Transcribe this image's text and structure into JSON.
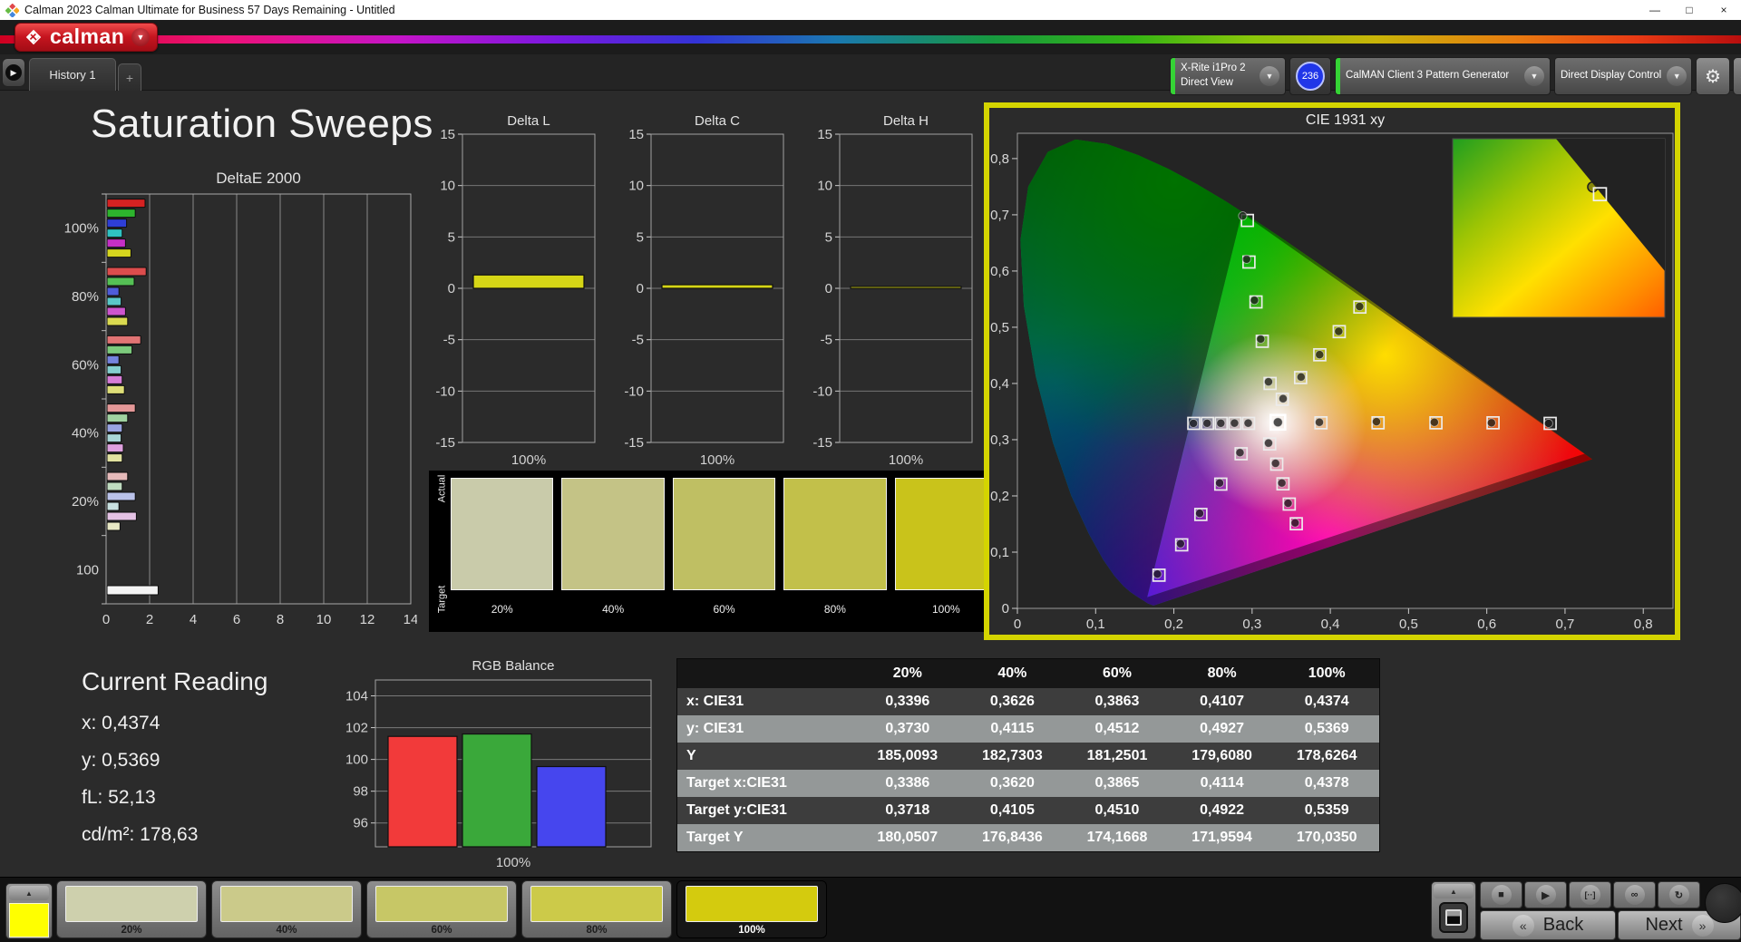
{
  "window": {
    "title": "Calman 2023 Calman Ultimate for Business 57 Days Remaining  - Untitled",
    "minimize": "—",
    "maximize": "□",
    "close": "×"
  },
  "brand": {
    "logo_text": "calman",
    "caret": "▼"
  },
  "tabs": {
    "history": "History 1",
    "add": "+",
    "scroll_arrow": "▶"
  },
  "toolbar": {
    "meter_line1": "X-Rite i1Pro 2",
    "meter_line2": "Direct View",
    "badge": "236",
    "pattern_generator": "CalMAN Client 3 Pattern Generator",
    "display_control": "Direct Display Control",
    "caret": "▼",
    "gear_icon": "⚙",
    "collapse_icon": "◀",
    "meter_status_color": "#35d435",
    "patgen_status_color": "#35d435",
    "dispctl_status_color": "#e3e300"
  },
  "page_title": "Saturation Sweeps",
  "current_reading": {
    "heading": "Current Reading",
    "x_line": "x: 0,4374",
    "y_line": "y: 0,5369",
    "fl_line": "fL: 52,13",
    "cdm2_line": "cd/m²: 178,63"
  },
  "swatch_strip": {
    "actual_label": "Actual",
    "target_label": "Target",
    "items": [
      {
        "label": "20%",
        "color": "#c9cbaa"
      },
      {
        "label": "40%",
        "color": "#c4c386"
      },
      {
        "label": "60%",
        "color": "#bfbf63"
      },
      {
        "label": "80%",
        "color": "#c2c04a"
      },
      {
        "label": "100%",
        "color": "#c9c31b"
      }
    ]
  },
  "table": {
    "columns": [
      "",
      "20%",
      "40%",
      "60%",
      "80%",
      "100%"
    ],
    "rows": [
      {
        "label": "x: CIE31",
        "values": [
          "0,3396",
          "0,3626",
          "0,3863",
          "0,4107",
          "0,4374"
        ]
      },
      {
        "label": "y: CIE31",
        "values": [
          "0,3730",
          "0,4115",
          "0,4512",
          "0,4927",
          "0,5369"
        ]
      },
      {
        "label": "Y",
        "values": [
          "185,0093",
          "182,7303",
          "181,2501",
          "179,6080",
          "178,6264"
        ]
      },
      {
        "label": "Target x:CIE31",
        "values": [
          "0,3386",
          "0,3620",
          "0,3865",
          "0,4114",
          "0,4378"
        ]
      },
      {
        "label": "Target y:CIE31",
        "values": [
          "0,3718",
          "0,4105",
          "0,4510",
          "0,4922",
          "0,5359"
        ]
      },
      {
        "label": "Target Y",
        "values": [
          "180,0507",
          "176,8436",
          "174,1668",
          "171,9594",
          "170,0350"
        ]
      }
    ]
  },
  "footer": {
    "pattern_color": "#ffff00",
    "levels": [
      {
        "label": "20%",
        "color": "#ced0ad",
        "selected": false
      },
      {
        "label": "40%",
        "color": "#cbca8a",
        "selected": false
      },
      {
        "label": "60%",
        "color": "#c7c766",
        "selected": false
      },
      {
        "label": "80%",
        "color": "#ccca49",
        "selected": false
      },
      {
        "label": "100%",
        "color": "#d4cb0e",
        "selected": true
      }
    ],
    "icons": {
      "up_chevron": "▲",
      "stop": "■",
      "play": "▶",
      "series": "[··]",
      "continuous": "∞",
      "refresh": "↻"
    },
    "back_label": "Back",
    "next_label": "Next",
    "back_chevron": "«",
    "next_chevron": "»"
  },
  "chart_data": [
    {
      "id": "deltae2000",
      "type": "bar",
      "orientation": "horizontal",
      "title": "DeltaE 2000",
      "xlim": [
        0,
        14
      ],
      "xticks": [
        0,
        2,
        4,
        6,
        8,
        10,
        12,
        14
      ],
      "groups": [
        {
          "label": "100%",
          "bars": [
            {
              "color": "#d52222",
              "value": 1.75
            },
            {
              "color": "#2db42d",
              "value": 1.3
            },
            {
              "color": "#2e3ed6",
              "value": 0.9
            },
            {
              "color": "#2fc2c2",
              "value": 0.7
            },
            {
              "color": "#c52fc5",
              "value": 0.85
            },
            {
              "color": "#d6d61e",
              "value": 1.1
            }
          ]
        },
        {
          "label": "80%",
          "bars": [
            {
              "color": "#dc4d4d",
              "value": 1.8
            },
            {
              "color": "#55c055",
              "value": 1.25
            },
            {
              "color": "#4f5cda",
              "value": 0.55
            },
            {
              "color": "#5ac8c8",
              "value": 0.65
            },
            {
              "color": "#cd55cd",
              "value": 0.85
            },
            {
              "color": "#dada50",
              "value": 0.95
            }
          ]
        },
        {
          "label": "60%",
          "bars": [
            {
              "color": "#e17474",
              "value": 1.55
            },
            {
              "color": "#7cca7c",
              "value": 1.15
            },
            {
              "color": "#7583de",
              "value": 0.55
            },
            {
              "color": "#84cfcf",
              "value": 0.65
            },
            {
              "color": "#d67cd6",
              "value": 0.7
            },
            {
              "color": "#dede78",
              "value": 0.8
            }
          ]
        },
        {
          "label": "40%",
          "bars": [
            {
              "color": "#e49898",
              "value": 1.3
            },
            {
              "color": "#a0d2a0",
              "value": 0.95
            },
            {
              "color": "#99a4e2",
              "value": 0.7
            },
            {
              "color": "#a8d6d6",
              "value": 0.65
            },
            {
              "color": "#dea0de",
              "value": 0.75
            },
            {
              "color": "#e2e2a0",
              "value": 0.7
            }
          ]
        },
        {
          "label": "20%",
          "bars": [
            {
              "color": "#e6baba",
              "value": 0.95
            },
            {
              "color": "#c0dcc0",
              "value": 0.7
            },
            {
              "color": "#bac2ea",
              "value": 1.3
            },
            {
              "color": "#c8e0e0",
              "value": 0.55
            },
            {
              "color": "#e4c2e4",
              "value": 1.35
            },
            {
              "color": "#e8e8c4",
              "value": 0.6
            }
          ]
        },
        {
          "label": "100",
          "bars": [
            {
              "color": "#f4f4f4",
              "value": 2.35
            }
          ]
        }
      ]
    },
    {
      "id": "delta_l",
      "type": "bar",
      "title": "Delta L",
      "ylim": [
        -15,
        15
      ],
      "yticks": [
        15,
        10,
        5,
        0,
        -5,
        -10,
        -15
      ],
      "categories": [
        "100%"
      ],
      "values": [
        1.3
      ],
      "bar_color": "#d6d616"
    },
    {
      "id": "delta_c",
      "type": "bar",
      "title": "Delta C",
      "ylim": [
        -15,
        15
      ],
      "yticks": [
        15,
        10,
        5,
        0,
        -5,
        -10,
        -15
      ],
      "categories": [
        "100%"
      ],
      "values": [
        0.35
      ],
      "bar_color": "#d6d616"
    },
    {
      "id": "delta_h",
      "type": "bar",
      "title": "Delta H",
      "ylim": [
        -15,
        15
      ],
      "yticks": [
        15,
        10,
        5,
        0,
        -5,
        -10,
        -15
      ],
      "categories": [
        "100%"
      ],
      "values": [
        0.08
      ],
      "bar_color": "#d6d616"
    },
    {
      "id": "rgb_balance",
      "type": "bar",
      "title": "RGB Balance",
      "ylim": [
        94.5,
        105
      ],
      "yticks": [
        104,
        102,
        100,
        98,
        96
      ],
      "categories": [
        "100%"
      ],
      "series": [
        {
          "name": "Red",
          "color": "#f23a3a",
          "value": 101.45
        },
        {
          "name": "Green",
          "color": "#3aa83a",
          "value": 101.6
        },
        {
          "name": "Blue",
          "color": "#4646ee",
          "value": 99.55
        }
      ]
    },
    {
      "id": "cie",
      "type": "scatter",
      "title": "CIE 1931 xy",
      "xlim": [
        0,
        0.838
      ],
      "ylim": [
        0,
        0.845
      ],
      "xticks": [
        "0",
        "0,1",
        "0,2",
        "0,3",
        "0,4",
        "0,5",
        "0,6",
        "0,7",
        "0,8"
      ],
      "yticks": [
        "0",
        "0,1",
        "0,2",
        "0,3",
        "0,4",
        "0,5",
        "0,6",
        "0,7",
        "0,8"
      ],
      "gamut_triangle": [
        [
          0.287,
          0.703
        ],
        [
          0.166,
          0.02
        ],
        [
          0.725,
          0.275
        ]
      ],
      "white_measure": [
        0.333,
        0.331
      ],
      "sweeps": [
        {
          "name": "red",
          "measured": [
            [
              0.386,
              0.331
            ],
            [
              0.459,
              0.332
            ],
            [
              0.533,
              0.331
            ],
            [
              0.606,
              0.33
            ],
            [
              0.679,
              0.329
            ]
          ],
          "target": [
            [
              0.388,
              0.33
            ],
            [
              0.461,
              0.33
            ],
            [
              0.535,
              0.33
            ],
            [
              0.608,
              0.33
            ],
            [
              0.681,
              0.329
            ]
          ]
        },
        {
          "name": "green",
          "measured": [
            [
              0.321,
              0.403
            ],
            [
              0.311,
              0.479
            ],
            [
              0.303,
              0.548
            ],
            [
              0.293,
              0.621
            ],
            [
              0.288,
              0.698
            ]
          ],
          "target": [
            [
              0.323,
              0.4
            ],
            [
              0.313,
              0.475
            ],
            [
              0.305,
              0.545
            ],
            [
              0.296,
              0.616
            ],
            [
              0.294,
              0.69
            ]
          ]
        },
        {
          "name": "blue",
          "measured": [
            [
              0.2845,
              0.277
            ],
            [
              0.2585,
              0.223
            ],
            [
              0.233,
              0.169
            ],
            [
              0.2085,
              0.115
            ],
            [
              0.179,
              0.061
            ]
          ],
          "target": [
            [
              0.286,
              0.275
            ],
            [
              0.26,
              0.221
            ],
            [
              0.2345,
              0.167
            ],
            [
              0.21,
              0.113
            ],
            [
              0.181,
              0.059
            ]
          ]
        },
        {
          "name": "cyan",
          "measured": [
            [
              0.295,
              0.3295
            ],
            [
              0.2775,
              0.3295
            ],
            [
              0.26,
              0.3293
            ],
            [
              0.2425,
              0.3292
            ],
            [
              0.225,
              0.329
            ]
          ],
          "target": [
            [
              0.2955,
              0.329
            ],
            [
              0.278,
              0.329
            ],
            [
              0.2605,
              0.329
            ],
            [
              0.243,
              0.329
            ],
            [
              0.2255,
              0.329
            ]
          ]
        },
        {
          "name": "magenta",
          "measured": [
            [
              0.321,
              0.294
            ],
            [
              0.33,
              0.258
            ],
            [
              0.338,
              0.223
            ],
            [
              0.346,
              0.187
            ],
            [
              0.355,
              0.152
            ]
          ],
          "target": [
            [
              0.3225,
              0.2925
            ],
            [
              0.3315,
              0.2565
            ],
            [
              0.3395,
              0.2215
            ],
            [
              0.3475,
              0.1855
            ],
            [
              0.3565,
              0.1505
            ]
          ]
        },
        {
          "name": "yellow",
          "measured": [
            [
              0.3396,
              0.373
            ],
            [
              0.3626,
              0.4115
            ],
            [
              0.3863,
              0.4512
            ],
            [
              0.4107,
              0.4927
            ],
            [
              0.4374,
              0.5369
            ]
          ],
          "target": [
            [
              0.3386,
              0.3718
            ],
            [
              0.362,
              0.4105
            ],
            [
              0.3865,
              0.451
            ],
            [
              0.4114,
              0.4922
            ],
            [
              0.4378,
              0.5359
            ]
          ]
        }
      ],
      "inset": {
        "marker_fx": 0.66,
        "marker_fy": 0.27
      }
    }
  ]
}
